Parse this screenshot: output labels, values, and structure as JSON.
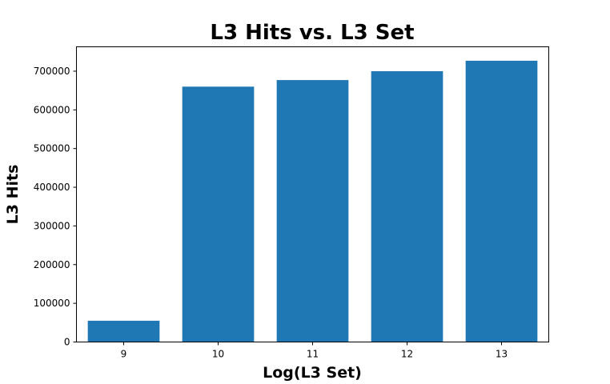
{
  "chart_data": {
    "type": "bar",
    "title": "L3 Hits vs. L3 Set",
    "xlabel": "Log(L3 Set)",
    "ylabel": "L3 Hits",
    "categories": [
      "9",
      "10",
      "11",
      "12",
      "13"
    ],
    "values": [
      55000,
      660000,
      677000,
      700000,
      727000
    ],
    "ylim": [
      0,
      763000
    ],
    "yticks": [
      0,
      100000,
      200000,
      300000,
      400000,
      500000,
      600000,
      700000
    ],
    "ytick_labels": [
      "0",
      "100000",
      "200000",
      "300000",
      "400000",
      "500000",
      "600000",
      "700000"
    ],
    "bar_color": "#1f77b4",
    "grid": false
  }
}
